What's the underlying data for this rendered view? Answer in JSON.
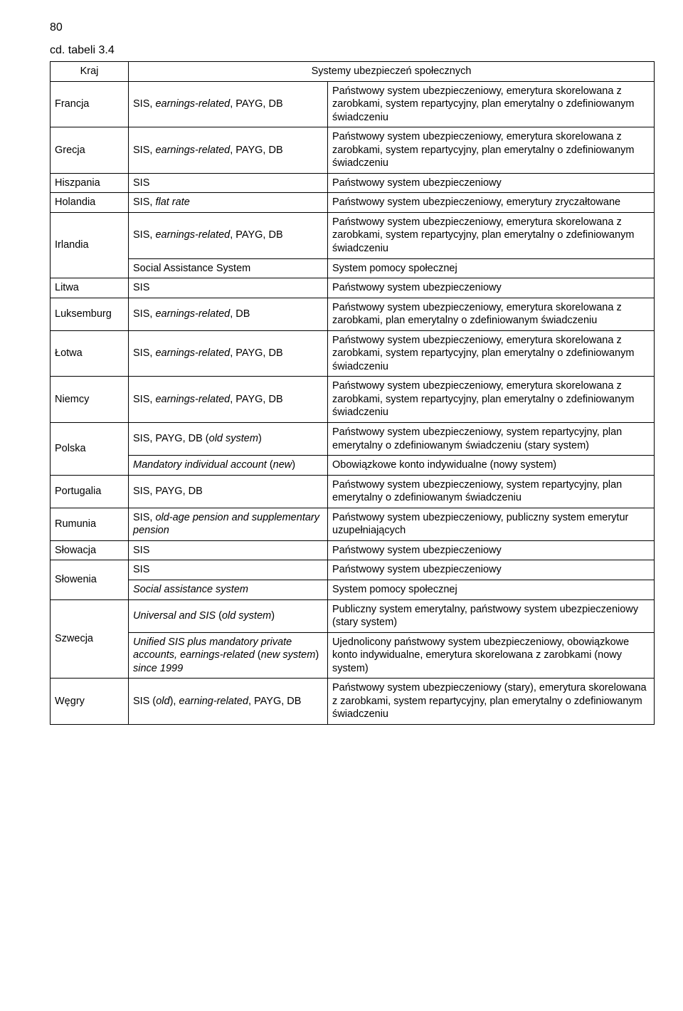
{
  "pageNumber": "80",
  "caption": "cd. tabeli 3.4",
  "headers": {
    "country": "Kraj",
    "systems": "Systemy ubezpieczeń społecznych"
  },
  "rows": [
    {
      "country": "Francja",
      "sysParts": [
        {
          "text": "SIS, ",
          "italic": false
        },
        {
          "text": "earnings-related",
          "italic": true
        },
        {
          "text": ", PAYG, DB",
          "italic": false
        }
      ],
      "desc": "Państwowy system ubezpieczeniowy, emerytura skorelowana z zarobkami, system repartycyjny, plan emerytalny o zdefiniowanym świadczeniu",
      "countryRowspan": 1
    },
    {
      "country": "Grecja",
      "sysParts": [
        {
          "text": "SIS, ",
          "italic": false
        },
        {
          "text": "earnings-related",
          "italic": true
        },
        {
          "text": ", PAYG, DB",
          "italic": false
        }
      ],
      "desc": "Państwowy system ubezpieczeniowy, emerytura skorelowana z zarobkami, system repartycyjny, plan emerytalny o zdefiniowanym świadczeniu",
      "countryRowspan": 1
    },
    {
      "country": "Hiszpania",
      "sysParts": [
        {
          "text": "SIS",
          "italic": false
        }
      ],
      "desc": "Państwowy system ubezpieczeniowy",
      "countryRowspan": 1
    },
    {
      "country": "Holandia",
      "sysParts": [
        {
          "text": "SIS, ",
          "italic": false
        },
        {
          "text": "flat rate",
          "italic": true
        }
      ],
      "desc": "Państwowy system ubezpieczeniowy, emerytury zryczałtowane",
      "countryRowspan": 1
    },
    {
      "country": "Irlandia",
      "sysParts": [
        {
          "text": "SIS, ",
          "italic": false
        },
        {
          "text": "earnings-related",
          "italic": true
        },
        {
          "text": ", PAYG, DB",
          "italic": false
        }
      ],
      "desc": "Państwowy system ubezpieczeniowy, emerytura skorelowana z zarobkami, system repartycyjny, plan emerytalny o zdefiniowanym świadczeniu",
      "countryRowspan": 2
    },
    {
      "sysParts": [
        {
          "text": "Social Assistance System",
          "italic": false
        }
      ],
      "desc": "System pomocy społecznej"
    },
    {
      "country": "Litwa",
      "sysParts": [
        {
          "text": "SIS",
          "italic": false
        }
      ],
      "desc": "Państwowy system ubezpieczeniowy",
      "countryRowspan": 1
    },
    {
      "country": "Luksemburg",
      "sysParts": [
        {
          "text": "SIS, ",
          "italic": false
        },
        {
          "text": "earnings-related",
          "italic": true
        },
        {
          "text": ", DB",
          "italic": false
        }
      ],
      "desc": "Państwowy system ubezpieczeniowy, emerytura skorelowana z zarobkami, plan emerytalny o zdefiniowanym świadczeniu",
      "countryRowspan": 1
    },
    {
      "country": "Łotwa",
      "sysParts": [
        {
          "text": "SIS, ",
          "italic": false
        },
        {
          "text": "earnings-related",
          "italic": true
        },
        {
          "text": ", PAYG, DB",
          "italic": false
        }
      ],
      "desc": "Państwowy system ubezpieczeniowy, emerytura skorelowana z zarobkami, system repartycyjny, plan emerytalny o zdefiniowanym świadczeniu",
      "countryRowspan": 1
    },
    {
      "country": "Niemcy",
      "sysParts": [
        {
          "text": "SIS, ",
          "italic": false
        },
        {
          "text": "earnings-related",
          "italic": true
        },
        {
          "text": ", PAYG, DB",
          "italic": false
        }
      ],
      "desc": "Państwowy system ubezpieczeniowy, emerytura skorelowana z zarobkami, system repartycyjny, plan emerytalny o zdefiniowanym świadczeniu",
      "countryRowspan": 1
    },
    {
      "country": "Polska",
      "sysParts": [
        {
          "text": "SIS, PAYG, DB (",
          "italic": false
        },
        {
          "text": "old system",
          "italic": true
        },
        {
          "text": ")",
          "italic": false
        }
      ],
      "desc": "Państwowy system ubezpieczeniowy, system repartycyjny, plan emerytalny o zdefiniowanym świadczeniu (stary system)",
      "countryRowspan": 2
    },
    {
      "sysParts": [
        {
          "text": "Mandatory individual account",
          "italic": true
        },
        {
          "text": " (",
          "italic": false
        },
        {
          "text": "new",
          "italic": true
        },
        {
          "text": ")",
          "italic": false
        }
      ],
      "desc": "Obowiązkowe konto indywidualne (nowy system)"
    },
    {
      "country": "Portugalia",
      "sysParts": [
        {
          "text": "SIS, PAYG, DB",
          "italic": false
        }
      ],
      "desc": "Państwowy system ubezpieczeniowy, system repartycyjny, plan emerytalny o zdefiniowanym świadczeniu",
      "countryRowspan": 1
    },
    {
      "country": "Rumunia",
      "sysParts": [
        {
          "text": "SIS, ",
          "italic": false
        },
        {
          "text": "old-age pension and supplementary pension",
          "italic": true
        }
      ],
      "desc": "Państwowy system ubezpieczeniowy, publiczny system emerytur uzupełniających",
      "countryRowspan": 1
    },
    {
      "country": "Słowacja",
      "sysParts": [
        {
          "text": "SIS",
          "italic": false
        }
      ],
      "desc": "Państwowy system ubezpieczeniowy",
      "countryRowspan": 1
    },
    {
      "country": "Słowenia",
      "sysParts": [
        {
          "text": "SIS",
          "italic": false
        }
      ],
      "desc": "Państwowy system ubezpieczeniowy",
      "countryRowspan": 2
    },
    {
      "sysParts": [
        {
          "text": "Social assistance system",
          "italic": true
        }
      ],
      "desc": "System pomocy społecznej"
    },
    {
      "country": "Szwecja",
      "sysParts": [
        {
          "text": "Universal and SIS",
          "italic": true
        },
        {
          "text": " (",
          "italic": false
        },
        {
          "text": "old system",
          "italic": true
        },
        {
          "text": ")",
          "italic": false
        }
      ],
      "desc": "Publiczny system emerytalny, państwowy system ubezpieczeniowy (stary system)",
      "countryRowspan": 2
    },
    {
      "sysParts": [
        {
          "text": "Unified SIS plus mandatory private accounts, earnings-related",
          "italic": true
        },
        {
          "text": " (",
          "italic": false
        },
        {
          "text": "new system",
          "italic": true
        },
        {
          "text": ") ",
          "italic": false
        },
        {
          "text": "since 1999",
          "italic": true
        }
      ],
      "desc": "Ujednolicony państwowy system ubezpieczeniowy, obowiązkowe konto indywidualne, emerytura skorelowana z zarobkami (nowy system)"
    },
    {
      "country": "Węgry",
      "sysParts": [
        {
          "text": "SIS (",
          "italic": false
        },
        {
          "text": "old",
          "italic": true
        },
        {
          "text": "), ",
          "italic": false
        },
        {
          "text": "earning-related",
          "italic": true
        },
        {
          "text": ", PAYG, DB",
          "italic": false
        }
      ],
      "desc": "Państwowy system ubezpieczeniowy (stary), emerytura skorelowana z zarobkami, system repartycyjny, plan emerytalny o zdefiniowanym świadczeniu",
      "countryRowspan": 1
    }
  ]
}
